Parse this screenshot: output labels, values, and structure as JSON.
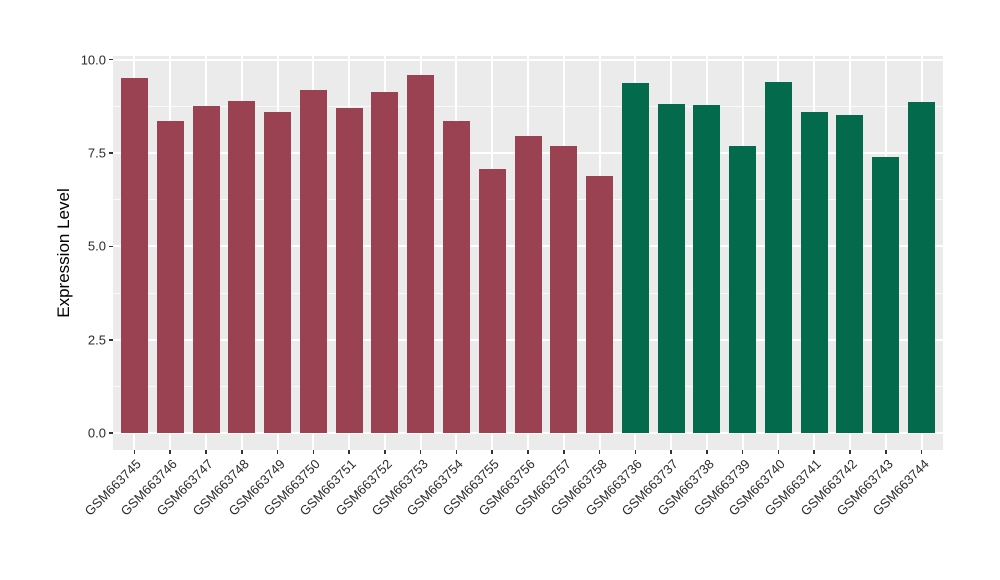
{
  "figure": {
    "background": "#ffffff"
  },
  "chart_data": {
    "type": "bar",
    "title": "",
    "xlabel": "",
    "ylabel": "Expression Level",
    "ylim": [
      0,
      10.5
    ],
    "yticks": [
      0,
      2.5,
      5,
      7.5,
      10
    ],
    "ytick_labels": [
      "0.0",
      "2.5",
      "5.0",
      "7.5",
      "10.0"
    ],
    "grid": "white major horizontal+vertical and minor horizontal gridlines on grey panel",
    "legend_position": "none",
    "panel_background": "#ebebeb",
    "grid_major_color": "#ffffff",
    "axis_text_color": "#2b2b2b",
    "categories": [
      "GSM663745",
      "GSM663746",
      "GSM663747",
      "GSM663748",
      "GSM663749",
      "GSM663750",
      "GSM663751",
      "GSM663752",
      "GSM663753",
      "GSM663754",
      "GSM663755",
      "GSM663756",
      "GSM663757",
      "GSM663758",
      "GSM663736",
      "GSM663737",
      "GSM663738",
      "GSM663739",
      "GSM663740",
      "GSM663741",
      "GSM663742",
      "GSM663743",
      "GSM663744"
    ],
    "values": [
      9.52,
      8.37,
      8.76,
      8.9,
      8.61,
      9.2,
      8.71,
      9.13,
      9.6,
      8.37,
      7.08,
      7.95,
      7.69,
      6.89,
      9.38,
      8.82,
      8.8,
      7.68,
      9.4,
      8.6,
      8.52,
      7.4,
      8.87
    ],
    "bar_groups": [
      0,
      0,
      0,
      0,
      0,
      0,
      0,
      0,
      0,
      0,
      0,
      0,
      0,
      0,
      1,
      1,
      1,
      1,
      1,
      1,
      1,
      1,
      1
    ],
    "series": [
      {
        "name": "group-red",
        "color": "#9b4252"
      },
      {
        "name": "group-green",
        "color": "#036b4b"
      }
    ]
  }
}
